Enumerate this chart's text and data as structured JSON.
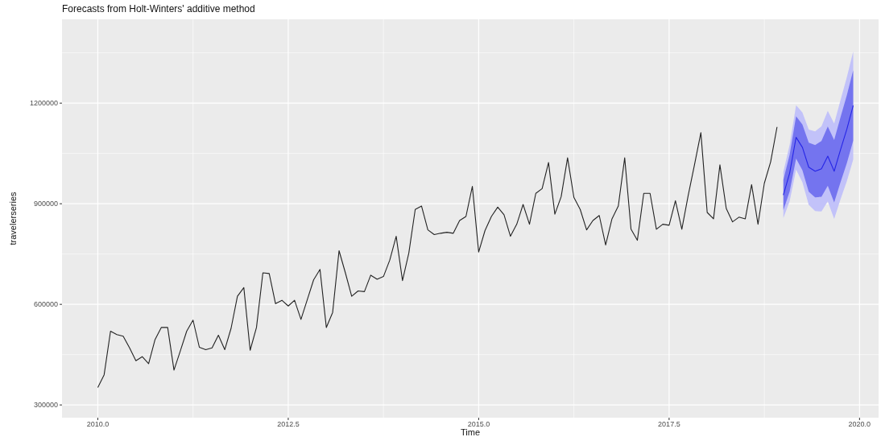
{
  "chart_data": {
    "type": "line",
    "title": "Forecasts from Holt-Winters' additive method",
    "xlabel": "Time",
    "ylabel": "travelerseries",
    "xlim": [
      2009.53,
      2020.25
    ],
    "ylim": [
      262000,
      1450000
    ],
    "xticks": [
      {
        "value": 2010,
        "label": "2010.0"
      },
      {
        "value": 2011.25,
        "label": null
      },
      {
        "value": 2012.5,
        "label": "2012.5"
      },
      {
        "value": 2013.75,
        "label": null
      },
      {
        "value": 2015,
        "label": "2015.0"
      },
      {
        "value": 2016.25,
        "label": null
      },
      {
        "value": 2017.5,
        "label": "2017.5"
      },
      {
        "value": 2018.75,
        "label": null
      },
      {
        "value": 2020,
        "label": "2020.0"
      }
    ],
    "yticks": [
      300000,
      {
        "value": 450000,
        "label": null
      },
      600000,
      {
        "value": 750000,
        "label": null
      },
      900000,
      {
        "value": 1050000,
        "label": null
      },
      1200000,
      {
        "value": 1350000,
        "label": null
      }
    ],
    "grid": true,
    "series": [
      {
        "color": "#222222",
        "x": [
          2010,
          2010.083,
          2010.167,
          2010.25,
          2010.333,
          2010.417,
          2010.5,
          2010.583,
          2010.667,
          2010.75,
          2010.833,
          2010.917,
          2011,
          2011.083,
          2011.167,
          2011.25,
          2011.333,
          2011.417,
          2011.5,
          2011.583,
          2011.667,
          2011.75,
          2011.833,
          2011.917,
          2012,
          2012.083,
          2012.167,
          2012.25,
          2012.333,
          2012.417,
          2012.5,
          2012.583,
          2012.667,
          2012.75,
          2012.833,
          2012.917,
          2013,
          2013.083,
          2013.167,
          2013.25,
          2013.333,
          2013.417,
          2013.5,
          2013.583,
          2013.667,
          2013.75,
          2013.833,
          2013.917,
          2014,
          2014.083,
          2014.167,
          2014.25,
          2014.333,
          2014.417,
          2014.5,
          2014.583,
          2014.667,
          2014.75,
          2014.833,
          2014.917,
          2015,
          2015.083,
          2015.167,
          2015.25,
          2015.333,
          2015.417,
          2015.5,
          2015.583,
          2015.667,
          2015.75,
          2015.833,
          2015.917,
          2016,
          2016.083,
          2016.167,
          2016.25,
          2016.333,
          2016.417,
          2016.5,
          2016.583,
          2016.667,
          2016.75,
          2016.833,
          2016.917,
          2017,
          2017.083,
          2017.167,
          2017.25,
          2017.333,
          2017.417,
          2017.5,
          2017.583,
          2017.667,
          2017.75,
          2017.833,
          2017.917,
          2018,
          2018.083,
          2018.167,
          2018.25,
          2018.333,
          2018.417,
          2018.5,
          2018.583,
          2018.667,
          2018.75,
          2018.833,
          2018.917
        ],
        "values": [
          352000,
          390000,
          520000,
          510000,
          505000,
          470000,
          432000,
          444000,
          423000,
          494000,
          531000,
          531000,
          404000,
          461000,
          520000,
          553000,
          472000,
          465000,
          470000,
          508000,
          465000,
          529000,
          624000,
          650000,
          463000,
          531000,
          694000,
          692000,
          602000,
          612000,
          595000,
          612000,
          555000,
          614000,
          673000,
          704000,
          531000,
          576000,
          760000,
          694000,
          624000,
          640000,
          638000,
          687000,
          675000,
          683000,
          732000,
          803000,
          671000,
          753000,
          883000,
          893000,
          822000,
          808000,
          812000,
          815000,
          812000,
          850000,
          862000,
          952000,
          756000,
          820000,
          862000,
          890000,
          867000,
          803000,
          839000,
          898000,
          839000,
          931000,
          945000,
          1023000,
          869000,
          921000,
          1037000,
          919000,
          883000,
          822000,
          850000,
          865000,
          777000,
          855000,
          893000,
          1037000,
          824000,
          791000,
          931000,
          931000,
          824000,
          839000,
          836000,
          909000,
          824000,
          924000,
          1016000,
          1112000,
          874000,
          855000,
          1016000,
          886000,
          846000,
          860000,
          855000,
          957000,
          839000,
          961000,
          1025000,
          1129000
        ]
      },
      {
        "color": "#c2c2f9",
        "x": [
          2019,
          2019.083,
          2019.167,
          2019.25,
          2019.333,
          2019.417,
          2019.5,
          2019.583,
          2019.667,
          2019.75,
          2019.833,
          2019.917
        ],
        "values": [
          null,
          null,
          null,
          null,
          null,
          null,
          null,
          null,
          null,
          null,
          null,
          null
        ],
        "lower": [
          857000,
          908000,
          1002000,
          964000,
          897000,
          878000,
          877000,
          907000,
          855000,
          913000,
          967000,
          1032000
        ],
        "upper": [
          995000,
          1076000,
          1194000,
          1172000,
          1121000,
          1116000,
          1131000,
          1177000,
          1139000,
          1209000,
          1277000,
          1354000
        ]
      },
      {
        "color": "#2626e6",
        "x": [
          2019,
          2019.083,
          2019.167,
          2019.25,
          2019.333,
          2019.417,
          2019.5,
          2019.583,
          2019.667,
          2019.75,
          2019.833,
          2019.917
        ],
        "values": [
          926000,
          992000,
          1098000,
          1068000,
          1009000,
          997000,
          1004000,
          1042000,
          997000,
          1061000,
          1122000,
          1193000
        ],
        "lower": [
          881000,
          937000,
          1035000,
          1000000,
          936000,
          919000,
          921000,
          954000,
          904000,
          964000,
          1021000,
          1088000
        ],
        "upper": [
          971000,
          1047000,
          1161000,
          1136000,
          1082000,
          1075000,
          1087000,
          1130000,
          1090000,
          1158000,
          1223000,
          1298000
        ]
      }
    ]
  }
}
